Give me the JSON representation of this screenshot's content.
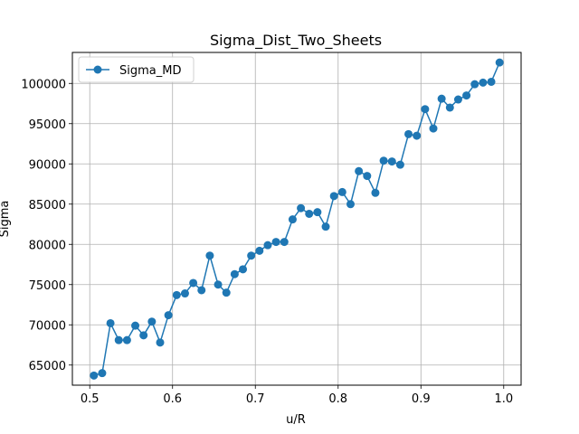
{
  "chart_data": {
    "type": "line",
    "title": "Sigma_Dist_Two_Sheets",
    "xlabel": "u/R",
    "ylabel": "Sigma",
    "xlim": [
      0.479,
      1.021
    ],
    "ylim": [
      62500,
      103850
    ],
    "xticks": [
      0.5,
      0.6,
      0.7,
      0.8,
      0.9,
      1.0
    ],
    "xtick_labels": [
      "0.5",
      "0.6",
      "0.7",
      "0.8",
      "0.9",
      "1.0"
    ],
    "yticks": [
      65000,
      70000,
      75000,
      80000,
      85000,
      90000,
      95000,
      100000
    ],
    "ytick_labels": [
      "65000",
      "70000",
      "75000",
      "80000",
      "85000",
      "90000",
      "95000",
      "100000"
    ],
    "grid": true,
    "legend_position": "top-left",
    "series": [
      {
        "name": "Sigma_MD",
        "color": "#1f77b4",
        "marker": "circle",
        "x": [
          0.505,
          0.515,
          0.525,
          0.535,
          0.545,
          0.555,
          0.565,
          0.575,
          0.585,
          0.595,
          0.605,
          0.615,
          0.625,
          0.635,
          0.645,
          0.655,
          0.665,
          0.675,
          0.685,
          0.695,
          0.705,
          0.715,
          0.725,
          0.735,
          0.745,
          0.755,
          0.765,
          0.775,
          0.785,
          0.795,
          0.805,
          0.815,
          0.825,
          0.835,
          0.845,
          0.855,
          0.865,
          0.875,
          0.885,
          0.895,
          0.905,
          0.915,
          0.925,
          0.935,
          0.945,
          0.955,
          0.965,
          0.975,
          0.985,
          0.995
        ],
        "values": [
          63700,
          64000,
          70200,
          68100,
          68100,
          69900,
          68700,
          70400,
          67800,
          71200,
          73700,
          73900,
          75200,
          74300,
          78600,
          75000,
          74000,
          76300,
          76900,
          78600,
          79200,
          79900,
          80300,
          80300,
          83100,
          84500,
          83800,
          84000,
          82200,
          86000,
          86500,
          85000,
          89100,
          88500,
          86400,
          90400,
          90300,
          89900,
          93700,
          93500,
          96800,
          94400,
          98100,
          97000,
          98000,
          98500,
          99900,
          100100,
          100200,
          102600
        ]
      }
    ]
  }
}
